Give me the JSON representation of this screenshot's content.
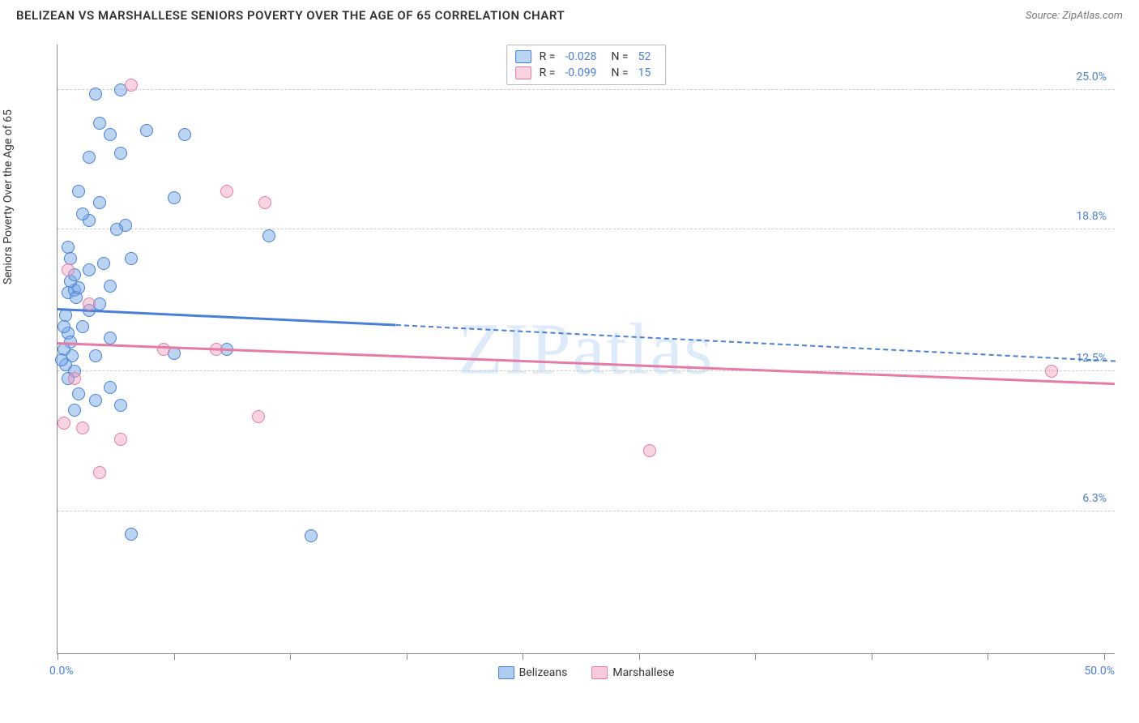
{
  "header": {
    "title": "BELIZEAN VS MARSHALLESE SENIORS POVERTY OVER THE AGE OF 65 CORRELATION CHART",
    "source": "Source: ZipAtlas.com"
  },
  "chart": {
    "type": "scatter",
    "y_label": "Seniors Poverty Over the Age of 65",
    "watermark": "ZIPatlas",
    "x_min": 0,
    "x_max": 50,
    "y_min": 0,
    "y_max": 27,
    "x_range_labels": [
      {
        "pos": 0,
        "text": "0.0%"
      },
      {
        "pos": 100,
        "text": "50.0%"
      }
    ],
    "y_gridlines": [
      {
        "value": 6.3,
        "label": "6.3%"
      },
      {
        "value": 12.5,
        "label": "12.5%"
      },
      {
        "value": 18.8,
        "label": "18.8%"
      },
      {
        "value": 25.0,
        "label": "25.0%"
      }
    ],
    "x_ticks": [
      0,
      5.5,
      11,
      16.5,
      22,
      27.5,
      33,
      38.5,
      44,
      49.5
    ],
    "series": [
      {
        "name": "Belizeans",
        "color": "#4a7fd8",
        "fill": "rgba(120,170,230,0.5)",
        "css_class": "dot-blue",
        "R": "-0.028",
        "N": "52",
        "points": [
          [
            0.5,
            14.2
          ],
          [
            0.6,
            13.8
          ],
          [
            0.7,
            13.2
          ],
          [
            0.3,
            13.5
          ],
          [
            0.4,
            12.8
          ],
          [
            0.8,
            12.5
          ],
          [
            0.5,
            16.0
          ],
          [
            0.8,
            16.1
          ],
          [
            0.9,
            15.8
          ],
          [
            1.0,
            16.2
          ],
          [
            0.6,
            16.5
          ],
          [
            2.5,
            14.0
          ],
          [
            1.8,
            13.2
          ],
          [
            1.2,
            14.5
          ],
          [
            2.0,
            15.5
          ],
          [
            1.5,
            15.2
          ],
          [
            3.2,
            19.0
          ],
          [
            2.8,
            18.8
          ],
          [
            1.5,
            19.2
          ],
          [
            2.0,
            20.0
          ],
          [
            3.5,
            17.5
          ],
          [
            1.5,
            22.0
          ],
          [
            3.0,
            22.2
          ],
          [
            2.0,
            23.5
          ],
          [
            2.5,
            23.0
          ],
          [
            4.2,
            23.2
          ],
          [
            5.5,
            20.2
          ],
          [
            6.0,
            23.0
          ],
          [
            1.8,
            24.8
          ],
          [
            3.0,
            25.0
          ],
          [
            10.0,
            18.5
          ],
          [
            8.0,
            13.5
          ],
          [
            5.5,
            13.3
          ],
          [
            1.0,
            11.5
          ],
          [
            2.5,
            11.8
          ],
          [
            3.0,
            11.0
          ],
          [
            0.8,
            10.8
          ],
          [
            1.5,
            17.0
          ],
          [
            2.2,
            17.3
          ],
          [
            0.4,
            15.0
          ],
          [
            0.3,
            14.5
          ],
          [
            0.2,
            13.0
          ],
          [
            0.5,
            12.2
          ],
          [
            3.5,
            5.3
          ],
          [
            12.0,
            5.2
          ],
          [
            0.8,
            16.8
          ],
          [
            1.2,
            19.5
          ],
          [
            0.5,
            18.0
          ],
          [
            1.0,
            20.5
          ],
          [
            1.8,
            11.2
          ],
          [
            2.5,
            16.3
          ],
          [
            0.6,
            17.5
          ]
        ],
        "trend": {
          "x1": 0,
          "y1": 15.3,
          "x2": 16,
          "y2": 14.6
        },
        "trend_dashed": {
          "x1": 16,
          "y1": 14.6,
          "x2": 50,
          "y2": 13.0
        }
      },
      {
        "name": "Marshallese",
        "color": "#e67ba5",
        "fill": "rgba(240,160,190,0.45)",
        "css_class": "dot-pink",
        "R": "-0.099",
        "N": "15",
        "points": [
          [
            3.5,
            25.2
          ],
          [
            8.0,
            20.5
          ],
          [
            9.8,
            20.0
          ],
          [
            5.0,
            13.5
          ],
          [
            7.5,
            13.5
          ],
          [
            0.5,
            17.0
          ],
          [
            1.5,
            15.5
          ],
          [
            0.8,
            12.2
          ],
          [
            2.0,
            8.0
          ],
          [
            3.0,
            9.5
          ],
          [
            1.2,
            10.0
          ],
          [
            0.3,
            10.2
          ],
          [
            9.5,
            10.5
          ],
          [
            28.0,
            9.0
          ],
          [
            47.0,
            12.5
          ]
        ],
        "trend": {
          "x1": 0,
          "y1": 13.8,
          "x2": 50,
          "y2": 12.0
        }
      }
    ],
    "legend_bottom": [
      {
        "label": "Belizeans",
        "swatch": "swatch-blue"
      },
      {
        "label": "Marshallese",
        "swatch": "swatch-pink"
      }
    ]
  }
}
